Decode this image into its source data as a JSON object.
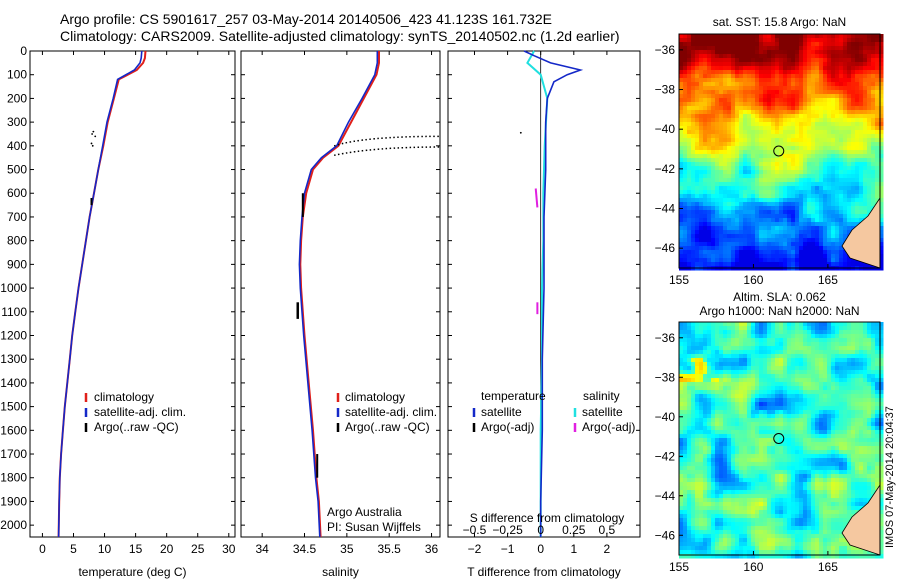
{
  "header": {
    "line1": "Argo profile: CS 5901617_257 03-May-2014 20140506_423 41.123S 161.732E",
    "line2": "Climatology: CARS2009. Satellite-adjusted climatology: synTS_20140502.nc (1.2d earlier)"
  },
  "side_text": "IMOS 07-May-2014 20:04:37",
  "colors": {
    "climatology": "#e0201a",
    "satellite": "#1428c8",
    "argo": "#000000",
    "sal_satellite": "#20e0e0",
    "sal_argo": "#e020e0",
    "land": "#f5c8a0"
  },
  "chart_data": [
    {
      "type": "line",
      "xlabel": "temperature (deg C)",
      "ylabel": "",
      "xlim": [
        -2,
        31
      ],
      "ylim": [
        2050,
        0
      ],
      "xticks": [
        0,
        5,
        10,
        15,
        20,
        25,
        30
      ],
      "yticks": [
        0,
        100,
        200,
        300,
        400,
        500,
        600,
        700,
        800,
        900,
        1000,
        1100,
        1200,
        1300,
        1400,
        1500,
        1600,
        1700,
        1800,
        1900,
        2000
      ],
      "legend": [
        "climatology",
        "satellite-adj. clim.",
        "Argo(..raw -QC)"
      ],
      "legend_position": "lower-center",
      "series": [
        {
          "name": "climatology",
          "color": "climatology",
          "x": [
            16.6,
            16.5,
            16.2,
            15.2,
            12.3,
            11.5,
            10.5,
            9.8,
            9.0,
            8.3,
            7.6,
            7.0,
            6.4,
            5.8,
            5.3,
            4.8,
            4.4,
            4.0,
            3.6,
            3.3,
            3.0,
            2.8,
            2.7,
            2.6
          ],
          "y": [
            0,
            30,
            50,
            80,
            120,
            200,
            300,
            400,
            500,
            600,
            700,
            800,
            900,
            1000,
            1100,
            1200,
            1300,
            1400,
            1500,
            1600,
            1700,
            1800,
            1900,
            2050
          ]
        },
        {
          "name": "satellite-adj. clim.",
          "color": "satellite",
          "x": [
            16.0,
            15.9,
            15.7,
            14.8,
            12.1,
            11.4,
            10.4,
            9.7,
            9.0,
            8.3,
            7.6,
            7.0,
            6.4,
            5.8,
            5.3,
            4.8,
            4.4,
            4.0,
            3.6,
            3.3,
            3.0,
            2.8,
            2.7,
            2.6
          ],
          "y": [
            0,
            30,
            50,
            80,
            120,
            200,
            300,
            400,
            500,
            600,
            700,
            800,
            900,
            1000,
            1100,
            1200,
            1300,
            1400,
            1500,
            1600,
            1700,
            1800,
            1900,
            2050
          ]
        }
      ]
    },
    {
      "type": "line",
      "xlabel": "salinity",
      "ylabel": "",
      "xlim": [
        33.75,
        36.1
      ],
      "ylim": [
        2050,
        0
      ],
      "xticks": [
        34,
        34.5,
        35,
        35.5,
        36
      ],
      "legend": [
        "climatology",
        "satellite-adj. clim.",
        "Argo(..raw -QC)"
      ],
      "legend_position": "lower-center",
      "annotations": [
        "Argo Australia",
        "PI: Susan Wijffels"
      ],
      "series": [
        {
          "name": "climatology",
          "color": "climatology",
          "x": [
            35.38,
            35.38,
            35.35,
            35.2,
            35.05,
            34.9,
            34.72,
            34.6,
            34.52,
            34.48,
            34.46,
            34.45,
            34.46,
            34.5,
            34.55,
            34.6,
            34.64,
            34.67,
            34.69
          ],
          "y": [
            0,
            50,
            100,
            200,
            300,
            400,
            450,
            500,
            600,
            700,
            800,
            900,
            1000,
            1200,
            1400,
            1600,
            1800,
            1900,
            2050
          ]
        },
        {
          "name": "satellite-adj. clim.",
          "color": "satellite",
          "x": [
            35.36,
            35.36,
            35.33,
            35.18,
            35.02,
            34.88,
            34.7,
            34.58,
            34.5,
            34.47,
            34.45,
            34.44,
            34.45,
            34.49,
            34.54,
            34.59,
            34.63,
            34.66,
            34.68
          ],
          "y": [
            0,
            50,
            100,
            200,
            300,
            400,
            450,
            500,
            600,
            700,
            800,
            900,
            1000,
            1200,
            1400,
            1600,
            1800,
            1900,
            2050
          ]
        }
      ]
    },
    {
      "type": "line",
      "xlabel": "T difference from climatology",
      "xlabel_top": "S difference from climatology",
      "xlim": [
        -2.8,
        3.0
      ],
      "ylim": [
        2050,
        0
      ],
      "xticks_bottom": [
        -2,
        -1,
        0,
        1,
        2
      ],
      "xticks_top": [
        -0.5,
        -0.25,
        0,
        0.25,
        0.5
      ],
      "xticks_top_labels": [
        "−0.5",
        "−0.25",
        "0",
        "0.25",
        "0.5"
      ],
      "legend_temperature_title": "temperature",
      "legend_salinity_title": "salinity",
      "legend_temperature": [
        "satellite",
        "Argo(-adj)"
      ],
      "legend_salinity": [
        "satellite",
        "Argo(-adj)"
      ],
      "series": [
        {
          "name": "satellite",
          "color": "satellite",
          "x": [
            -0.5,
            -0.2,
            0.3,
            1.2,
            0.8,
            0.4,
            0.2,
            0.15,
            0.15,
            0.1,
            0.1,
            0.05,
            0.05,
            0.0,
            0.0
          ],
          "y": [
            0,
            20,
            50,
            80,
            100,
            130,
            200,
            300,
            500,
            700,
            1000,
            1300,
            1600,
            1900,
            2050
          ]
        },
        {
          "name": "salinity satellite",
          "color": "sal_satellite",
          "x": [
            -0.05,
            -0.1,
            0.0,
            0.05,
            0.03,
            0.02,
            0.02,
            0.01,
            0.01,
            0.0,
            0.0
          ],
          "y": [
            0,
            50,
            100,
            200,
            400,
            600,
            800,
            1000,
            1300,
            1600,
            2050
          ]
        }
      ]
    },
    {
      "type": "heatmap",
      "title": "sat. SST: 15.8  Argo: NaN",
      "xlim": [
        155,
        168.5
      ],
      "ylim": [
        -47,
        -35.2
      ],
      "xticks": [
        155,
        160,
        165
      ],
      "yticks": [
        -36,
        -38,
        -40,
        -42,
        -44,
        -46
      ],
      "marker": {
        "lon": 161.7,
        "lat": -41.1
      }
    },
    {
      "type": "heatmap",
      "title": "Altim. SLA: 0.062",
      "subtitle": "Argo h1000: NaN  h2000: NaN",
      "xlim": [
        155,
        168.5
      ],
      "ylim": [
        -47,
        -35.2
      ],
      "xticks": [
        155,
        160,
        165
      ],
      "yticks": [
        -36,
        -38,
        -40,
        -42,
        -44,
        -46
      ],
      "marker": {
        "lon": 161.7,
        "lat": -41.1
      }
    }
  ]
}
